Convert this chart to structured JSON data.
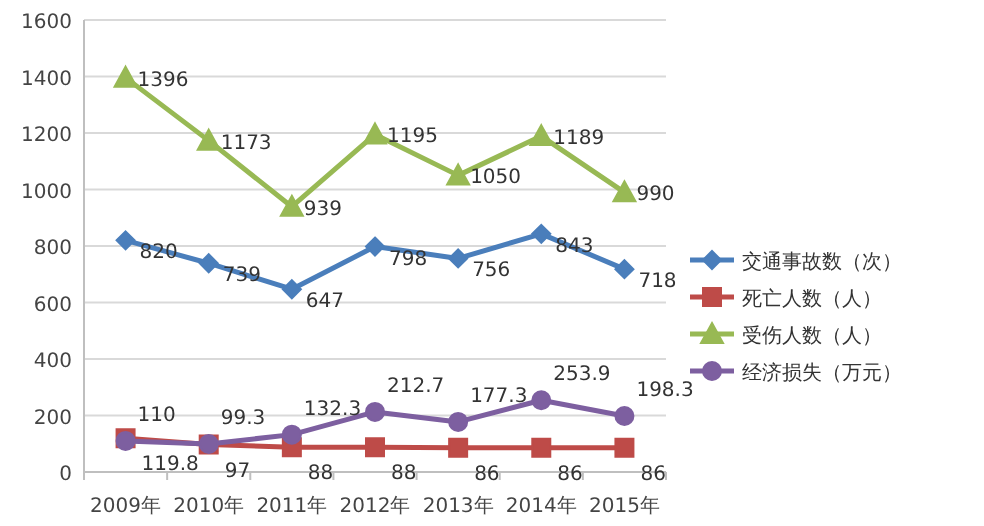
{
  "chart_data": {
    "type": "line",
    "categories": [
      "2009年",
      "2010年",
      "2011年",
      "2012年",
      "2013年",
      "2014年",
      "2015年"
    ],
    "series": [
      {
        "name": "交通事故数（次）",
        "color": "#4a7ebb",
        "marker": "diamond",
        "values": [
          820,
          739,
          647,
          798,
          756,
          843,
          718
        ]
      },
      {
        "name": "死亡人数（人）",
        "color": "#be4b48",
        "marker": "square",
        "values": [
          119.8,
          97,
          88,
          88,
          86,
          86,
          86
        ]
      },
      {
        "name": "受伤人数（人）",
        "color": "#98b954",
        "marker": "triangle",
        "values": [
          1396,
          1173,
          939,
          1195,
          1050,
          1189,
          990
        ]
      },
      {
        "name": "经济损失（万元）",
        "color": "#7d5fa0",
        "marker": "circle",
        "values": [
          110,
          99.3,
          132.3,
          212.7,
          177.3,
          253.9,
          198.3
        ]
      }
    ],
    "ylim": [
      0,
      1600
    ],
    "yticks": [
      0,
      200,
      400,
      600,
      800,
      1000,
      1200,
      1400,
      1600
    ],
    "grid": "y",
    "legend": "right",
    "data_labels": true,
    "line_style": "solid"
  }
}
